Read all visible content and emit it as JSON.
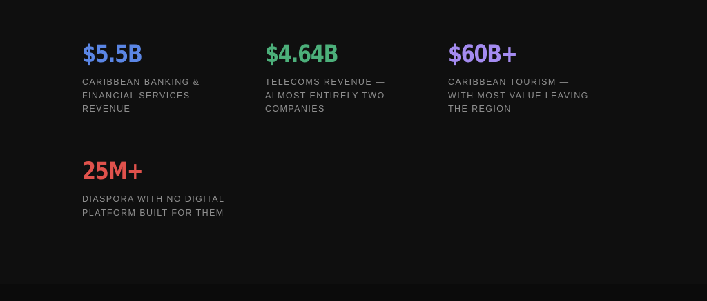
{
  "stats": [
    {
      "value": "$5.5B",
      "description": "CARIBBEAN BANKING & FINANCIAL SERVICES REVENUE",
      "color": "#5b86e5"
    },
    {
      "value": "$4.64B",
      "description": "TELECOMS REVENUE — ALMOST ENTIRELY TWO COMPANIES",
      "color": "#4caf7a"
    },
    {
      "value": "$60B+",
      "description": "CARIBBEAN TOURISM — WITH MOST VALUE LEAVING THE REGION",
      "color": "#a48bf0"
    },
    {
      "value": "25M+",
      "description": "DIASPORA WITH NO DIGITAL PLATFORM BUILT FOR THEM",
      "color": "#e0524c"
    }
  ],
  "colors": {
    "background": "#0f0f0f",
    "description_text": "#8e8e8e",
    "divider": "#262626"
  }
}
